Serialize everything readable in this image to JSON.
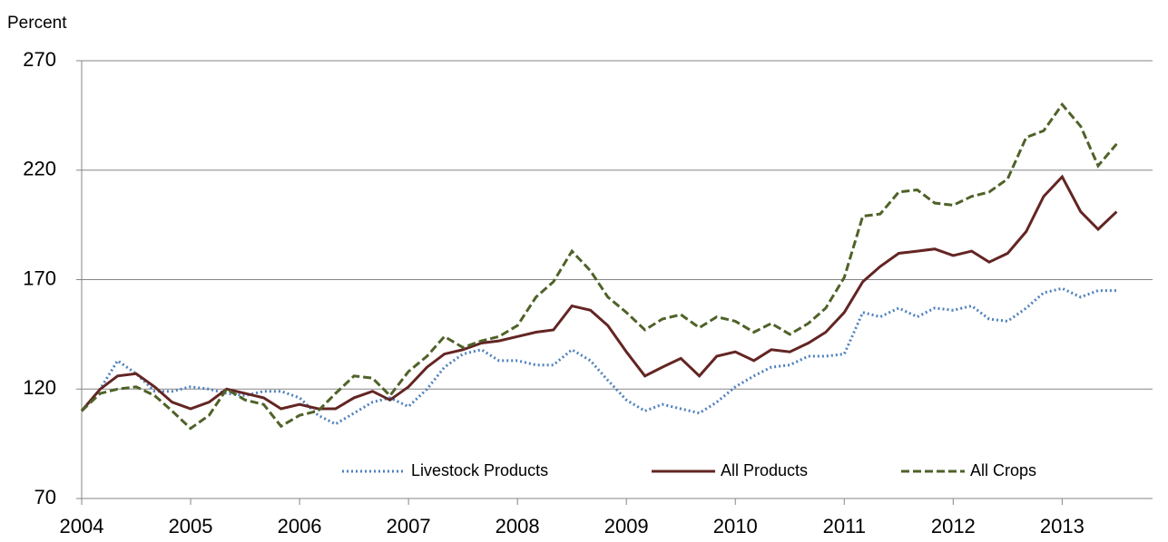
{
  "chart_data": {
    "type": "line",
    "y_label": "Percent",
    "x": [
      2004.0,
      2004.17,
      2004.33,
      2004.5,
      2004.67,
      2004.83,
      2005.0,
      2005.17,
      2005.33,
      2005.5,
      2005.67,
      2005.83,
      2006.0,
      2006.17,
      2006.33,
      2006.5,
      2006.67,
      2006.83,
      2007.0,
      2007.17,
      2007.33,
      2007.5,
      2007.67,
      2007.83,
      2008.0,
      2008.17,
      2008.33,
      2008.5,
      2008.67,
      2008.83,
      2009.0,
      2009.17,
      2009.33,
      2009.5,
      2009.67,
      2009.83,
      2010.0,
      2010.17,
      2010.33,
      2010.5,
      2010.67,
      2010.83,
      2011.0,
      2011.17,
      2011.33,
      2011.5,
      2011.67,
      2011.83,
      2012.0,
      2012.17,
      2012.33,
      2012.5,
      2012.67,
      2012.83,
      2013.0,
      2013.17,
      2013.33,
      2013.5
    ],
    "xlim": [
      2004,
      2013.83
    ],
    "xticks": [
      2004,
      2005,
      2006,
      2007,
      2008,
      2009,
      2010,
      2011,
      2012,
      2013
    ],
    "ylim": [
      70,
      270
    ],
    "yticks": [
      70,
      120,
      170,
      220,
      270
    ],
    "grid": true,
    "series": [
      {
        "name": "Livestock Products",
        "color": "#4f81bd",
        "dash": "dotted",
        "values": [
          110,
          120,
          133,
          127,
          119,
          119,
          121,
          120,
          118,
          117,
          119,
          119,
          116,
          108,
          104,
          109,
          114,
          116,
          112,
          120,
          130,
          136,
          138,
          133,
          133,
          131,
          131,
          138,
          133,
          124,
          115,
          110,
          113,
          111,
          109,
          114,
          121,
          126,
          130,
          131,
          135,
          135,
          136,
          155,
          153,
          157,
          153,
          157,
          156,
          158,
          152,
          151,
          157,
          164,
          166,
          162,
          165,
          165
        ]
      },
      {
        "name": "All Products",
        "color": "#632523",
        "dash": "solid",
        "values": [
          110,
          120,
          126,
          127,
          121,
          114,
          111,
          114,
          120,
          118,
          116,
          111,
          113,
          111,
          111,
          116,
          119,
          115,
          121,
          130,
          136,
          138,
          141,
          142,
          144,
          146,
          147,
          158,
          156,
          149,
          137,
          126,
          130,
          134,
          126,
          135,
          137,
          133,
          138,
          137,
          141,
          146,
          155,
          169,
          176,
          182,
          183,
          184,
          181,
          183,
          178,
          182,
          192,
          208,
          217,
          201,
          193,
          201
        ]
      },
      {
        "name": "All Crops",
        "color": "#4f6228",
        "dash": "dashed",
        "values": [
          110,
          118,
          120,
          121,
          117,
          110,
          102,
          108,
          120,
          115,
          113,
          103,
          108,
          110,
          118,
          126,
          125,
          117,
          128,
          135,
          144,
          139,
          142,
          144,
          149,
          162,
          169,
          183,
          174,
          162,
          155,
          147,
          152,
          154,
          148,
          153,
          151,
          146,
          150,
          145,
          150,
          157,
          171,
          199,
          200,
          210,
          211,
          205,
          204,
          208,
          210,
          216,
          235,
          238,
          250,
          240,
          222,
          232
        ]
      }
    ]
  }
}
